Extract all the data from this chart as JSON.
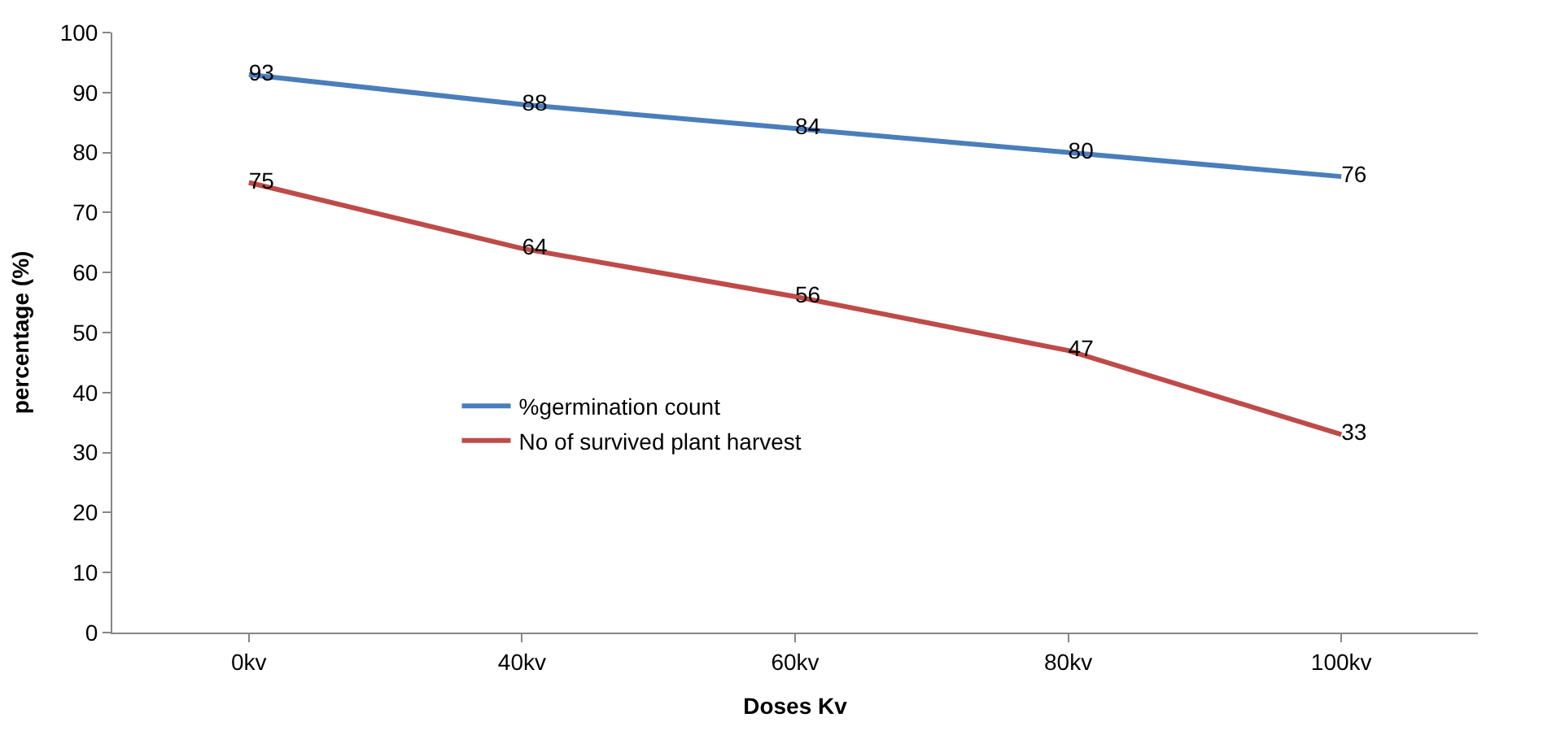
{
  "chart_data": {
    "type": "line",
    "xlabel": "Doses Kv",
    "ylabel": "percentage (%)",
    "categories": [
      "0kv",
      "40kv",
      "60kv",
      "80kv",
      "100kv"
    ],
    "series": [
      {
        "name": "%germination count",
        "color": "#4a7ebb",
        "values": [
          93,
          88,
          84,
          80,
          76
        ]
      },
      {
        "name": "No of survived plant harvest",
        "color": "#be4b48",
        "values": [
          75,
          64,
          56,
          47,
          33
        ]
      }
    ],
    "ylim": [
      0,
      100
    ],
    "yticks": [
      0,
      10,
      20,
      30,
      40,
      50,
      60,
      70,
      80,
      90,
      100
    ],
    "data_labels": true,
    "legend": "center left",
    "marker": "none",
    "line_style": "solid"
  }
}
